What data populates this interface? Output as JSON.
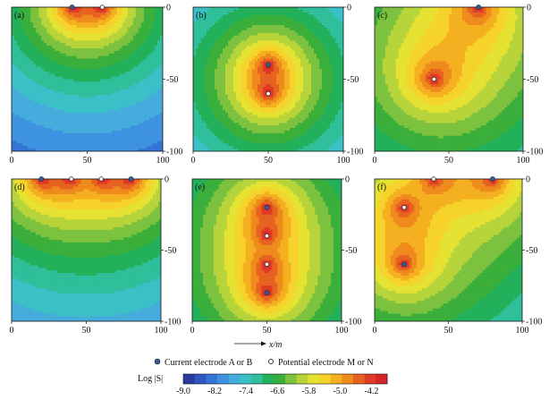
{
  "chart_data": {
    "type": "heatmap",
    "xlabel": "x/m",
    "x_ticks": [
      "0",
      "50",
      "100"
    ],
    "y_ticks": [
      "0",
      "-50",
      "-100"
    ],
    "xlim": [
      0,
      100
    ],
    "ylim": [
      -100,
      0
    ],
    "colorbar": {
      "title": "Log |S|",
      "ticks": [
        "-9.0",
        "-8.2",
        "-7.4",
        "-6.6",
        "-5.8",
        "-5.0",
        "-4.2"
      ],
      "range": [
        -9.0,
        -3.8
      ],
      "colors": [
        "#2b3a9e",
        "#2f56c2",
        "#3574d6",
        "#3e93e0",
        "#45acdc",
        "#3cc0c8",
        "#2fbf9a",
        "#22b05a",
        "#3aaf3b",
        "#7cc23e",
        "#b7d43a",
        "#e6e233",
        "#f6d32b",
        "#f5b021",
        "#ef8b1d",
        "#e76221",
        "#df3a26",
        "#d5232a"
      ]
    },
    "legend": [
      {
        "label": "Current electrode A or B",
        "marker": "filled-dot"
      },
      {
        "label": "Potential electrode M or N",
        "marker": "hollow-dot"
      }
    ],
    "panels": [
      {
        "label": "(a)",
        "electrodes": [
          {
            "type": "current",
            "x": 40,
            "y": 0
          },
          {
            "type": "potential",
            "x": 60,
            "y": 0
          }
        ]
      },
      {
        "label": "(b)",
        "electrodes": [
          {
            "type": "current",
            "x": 50,
            "y": -40
          },
          {
            "type": "potential",
            "x": 50,
            "y": -60
          }
        ]
      },
      {
        "label": "(c)",
        "electrodes": [
          {
            "type": "current",
            "x": 70,
            "y": 0
          },
          {
            "type": "potential",
            "x": 40,
            "y": -50
          }
        ]
      },
      {
        "label": "(d)",
        "electrodes": [
          {
            "type": "current",
            "x": 20,
            "y": 0
          },
          {
            "type": "potential",
            "x": 40,
            "y": 0
          },
          {
            "type": "potential",
            "x": 60,
            "y": 0
          },
          {
            "type": "current",
            "x": 80,
            "y": 0
          }
        ]
      },
      {
        "label": "(e)",
        "electrodes": [
          {
            "type": "current",
            "x": 50,
            "y": -20
          },
          {
            "type": "potential",
            "x": 50,
            "y": -40
          },
          {
            "type": "potential",
            "x": 50,
            "y": -60
          },
          {
            "type": "current",
            "x": 50,
            "y": -80
          }
        ]
      },
      {
        "label": "(f)",
        "electrodes": [
          {
            "type": "current",
            "x": 20,
            "y": -60
          },
          {
            "type": "potential",
            "x": 20,
            "y": -20
          },
          {
            "type": "potential",
            "x": 40,
            "y": 0
          },
          {
            "type": "current",
            "x": 80,
            "y": 0
          }
        ]
      }
    ]
  }
}
